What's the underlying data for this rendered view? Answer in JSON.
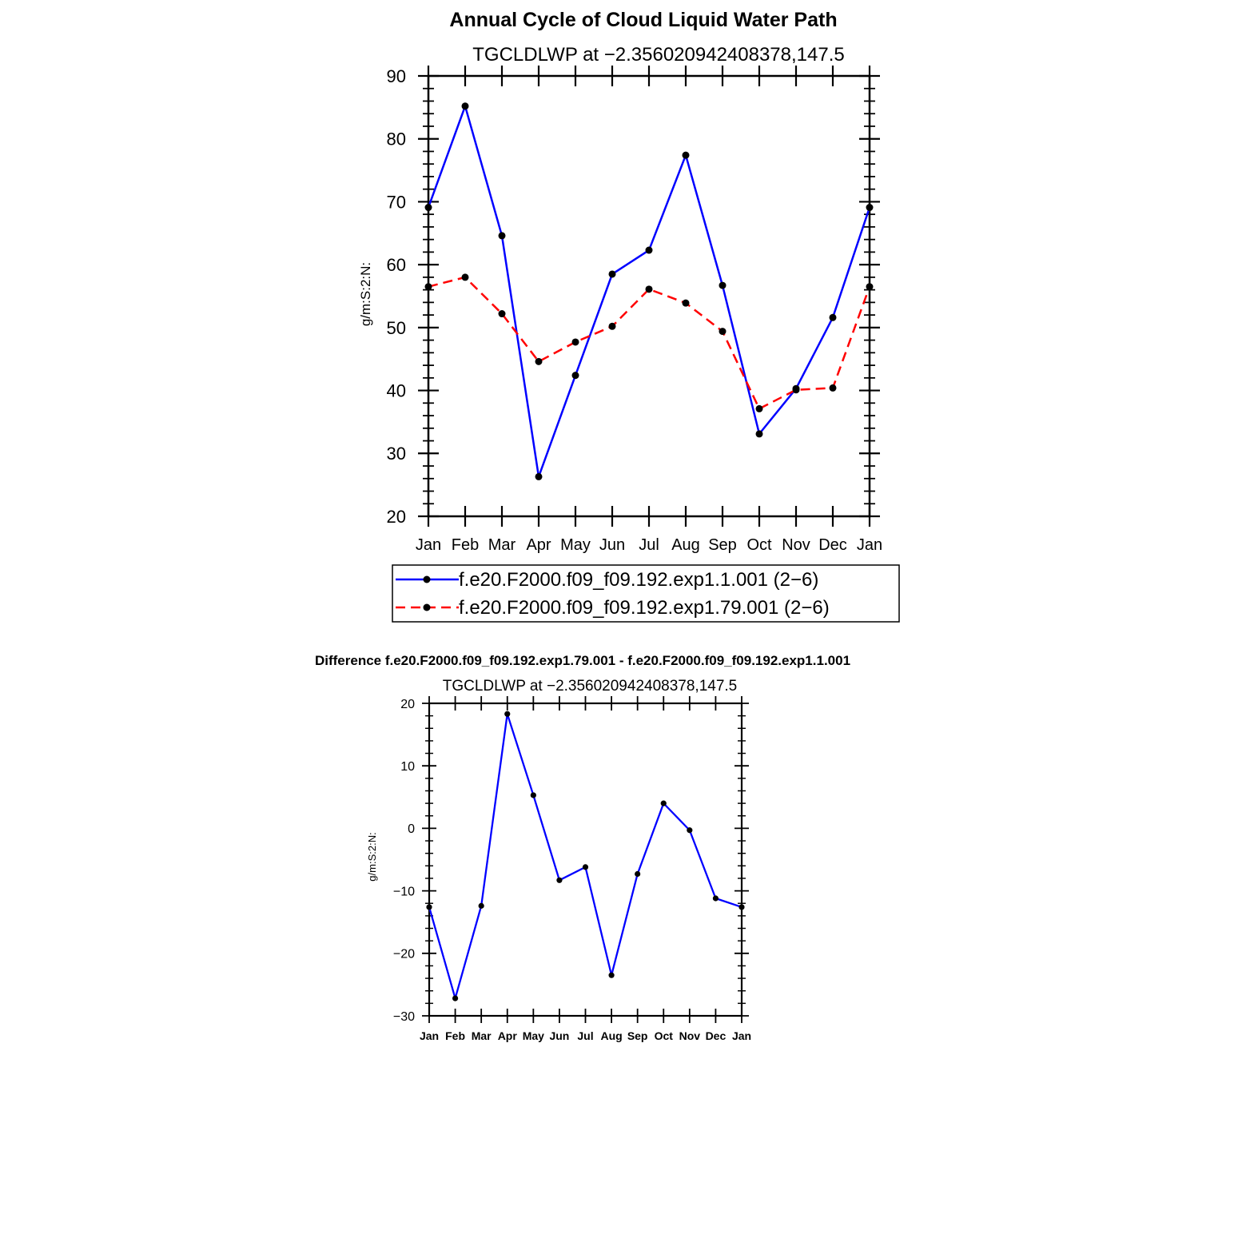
{
  "chart_data": [
    {
      "type": "line",
      "title": "Annual Cycle of Cloud Liquid Water Path",
      "subtitle": "TGCLDLWP at −2.356020942408378,147.5",
      "xlabel": "",
      "ylabel": "g/m:S:2:N:",
      "categories": [
        "Jan",
        "Feb",
        "Mar",
        "Apr",
        "May",
        "Jun",
        "Jul",
        "Aug",
        "Sep",
        "Oct",
        "Nov",
        "Dec",
        "Jan"
      ],
      "ylim": [
        20,
        90
      ],
      "yticks": [
        20,
        30,
        40,
        50,
        60,
        70,
        80,
        90
      ],
      "ytick_labels": [
        "20",
        "30",
        "40",
        "50",
        "60",
        "70",
        "80",
        "90"
      ],
      "grid": false,
      "legend": "bottom",
      "series": [
        {
          "name": "f.e20.F2000.f09_f09.192.exp1.1.001 (2−6)",
          "color": "#0000ff",
          "dash": "solid",
          "values": [
            69.1,
            85.2,
            64.6,
            26.3,
            42.4,
            58.5,
            62.3,
            77.4,
            56.7,
            33.1,
            40.3,
            51.6,
            69.1
          ]
        },
        {
          "name": "f.e20.F2000.f09_f09.192.exp1.79.001 (2−6)",
          "color": "#ff0000",
          "dash": "dashed",
          "values": [
            56.5,
            58.0,
            52.2,
            44.6,
            47.7,
            50.2,
            56.1,
            53.9,
            49.4,
            37.1,
            40.1,
            40.4,
            56.5
          ]
        }
      ]
    },
    {
      "type": "line",
      "title": "Difference f.e20.F2000.f09_f09.192.exp1.79.001 - f.e20.F2000.f09_f09.192.exp1.1.001",
      "subtitle": "TGCLDLWP at −2.356020942408378,147.5",
      "xlabel": "",
      "ylabel": "g/m:S:2:N:",
      "categories": [
        "Jan",
        "Feb",
        "Mar",
        "Apr",
        "May",
        "Jun",
        "Jul",
        "Aug",
        "Sep",
        "Oct",
        "Nov",
        "Dec",
        "Jan"
      ],
      "ylim": [
        -30,
        20
      ],
      "yticks": [
        -30,
        -20,
        -10,
        0,
        10,
        20
      ],
      "ytick_labels": [
        "−30",
        "−20",
        "−10",
        "0",
        "10",
        "20"
      ],
      "grid": false,
      "legend": "none",
      "series": [
        {
          "name": "Difference",
          "color": "#0000ff",
          "dash": "solid",
          "values": [
            -12.6,
            -27.2,
            -12.4,
            18.3,
            5.3,
            -8.3,
            -6.2,
            -23.5,
            -7.3,
            4.0,
            -0.3,
            -11.2,
            -12.6
          ]
        }
      ]
    }
  ]
}
